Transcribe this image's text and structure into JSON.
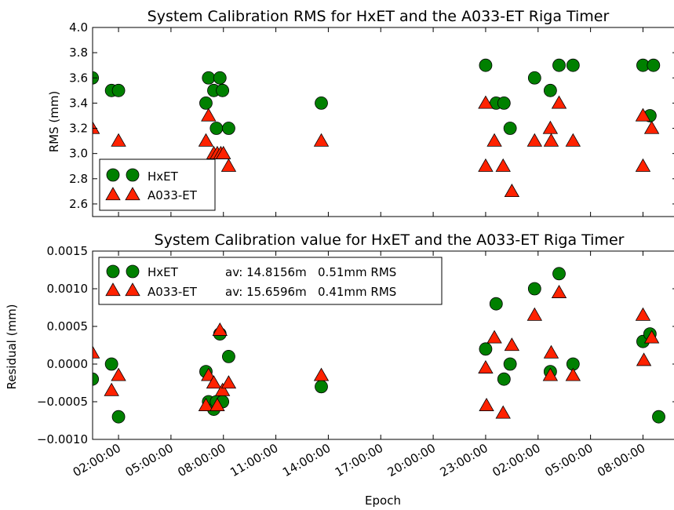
{
  "chart_data": [
    {
      "type": "scatter",
      "title": "System Calibration RMS for HxET and the A033-ET Riga Timer",
      "xlabel": "",
      "ylabel": "RMS (mm)",
      "ylim": [
        2.5,
        4.0
      ],
      "yticks": [
        "2.6",
        "2.8",
        "3.0",
        "3.2",
        "3.4",
        "3.6",
        "3.8",
        "4.0"
      ],
      "legend_position": "lower-left",
      "series": [
        {
          "name": "HxET",
          "color": "#008000",
          "marker": "circle",
          "x": [
            0.5,
            1.6,
            2.0,
            7.0,
            7.15,
            7.45,
            7.6,
            7.8,
            7.95,
            8.3,
            13.6,
            23.0,
            23.6,
            24.05,
            24.4,
            25.8,
            26.7,
            27.2,
            28.0,
            32.0,
            32.4,
            32.6
          ],
          "y": [
            3.6,
            3.5,
            3.5,
            3.4,
            3.6,
            3.5,
            3.2,
            3.6,
            3.5,
            3.2,
            3.4,
            3.7,
            3.4,
            3.4,
            3.2,
            3.6,
            3.5,
            3.7,
            3.7,
            3.7,
            3.3,
            3.7
          ]
        },
        {
          "name": "A033-ET",
          "color": "#ff2200",
          "marker": "triangle",
          "x": [
            0.5,
            2.0,
            7.0,
            7.15,
            7.45,
            7.65,
            7.85,
            8.0,
            8.3,
            13.6,
            23.0,
            23.0,
            23.5,
            24.0,
            24.5,
            25.8,
            26.7,
            26.75,
            27.2,
            28.0,
            32.0,
            32.0,
            32.5
          ],
          "y": [
            3.2,
            3.1,
            3.1,
            3.3,
            3.0,
            3.0,
            3.0,
            3.0,
            2.9,
            3.1,
            3.4,
            2.9,
            3.1,
            2.9,
            2.7,
            3.1,
            3.2,
            3.1,
            3.4,
            3.1,
            3.3,
            2.9,
            3.2
          ]
        }
      ]
    },
    {
      "type": "scatter",
      "title": "System Calibration value for HxET and the A033-ET Riga Timer",
      "xlabel": "Epoch",
      "ylabel": "Residual (mm)",
      "ylim": [
        -0.001,
        0.0015
      ],
      "yticks": [
        "−0.0010",
        "−0.0005",
        "0.0000",
        "0.0005",
        "0.0010",
        "0.0015"
      ],
      "xticks": [
        "02:00:00",
        "05:00:00",
        "08:00:00",
        "11:00:00",
        "14:00:00",
        "17:00:00",
        "20:00:00",
        "23:00:00",
        "02:00:00",
        "05:00:00",
        "08:00:00"
      ],
      "legend_position": "upper-left",
      "series": [
        {
          "name": "HxET",
          "stats": "av: 14.8156m   0.51mm RMS",
          "color": "#008000",
          "marker": "circle",
          "x": [
            0.5,
            1.6,
            2.0,
            7.0,
            7.15,
            7.45,
            7.6,
            7.8,
            7.95,
            8.3,
            13.6,
            23.0,
            23.6,
            24.05,
            24.4,
            25.8,
            26.7,
            27.2,
            28.0,
            32.0,
            32.4,
            32.9
          ],
          "y": [
            -0.0002,
            0.0,
            -0.0007,
            -0.0001,
            -0.0005,
            -0.0006,
            -0.0005,
            0.0004,
            -0.0005,
            0.0001,
            -0.0003,
            0.0002,
            0.0008,
            -0.0002,
            0.0,
            0.001,
            -0.0001,
            0.0012,
            0.0,
            0.0003,
            0.0004,
            -0.0007
          ]
        },
        {
          "name": "A033-ET",
          "stats": "av: 15.6596m   0.41mm RMS",
          "color": "#ff2200",
          "marker": "triangle",
          "x": [
            0.5,
            1.6,
            2.0,
            7.0,
            7.15,
            7.45,
            7.65,
            7.8,
            7.95,
            8.3,
            13.6,
            23.0,
            23.05,
            23.5,
            24.0,
            24.5,
            25.8,
            26.7,
            26.75,
            27.2,
            28.0,
            32.0,
            32.05,
            32.5
          ],
          "y": [
            0.00015,
            -0.00035,
            -0.00015,
            -0.00055,
            -0.00015,
            -0.00025,
            -0.00055,
            0.00045,
            -0.00035,
            -0.00025,
            -0.00015,
            -5e-05,
            -0.00055,
            0.00035,
            -0.00065,
            0.00025,
            0.00065,
            -0.00015,
            0.00015,
            0.00095,
            -0.00015,
            0.00065,
            5e-05,
            0.00035
          ]
        }
      ]
    }
  ]
}
